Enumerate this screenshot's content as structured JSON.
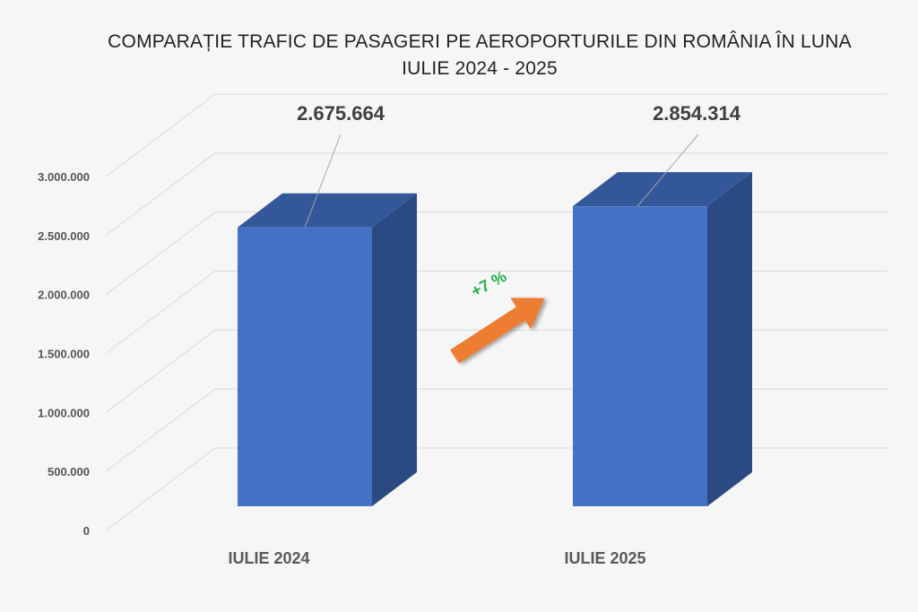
{
  "chart_data": {
    "type": "bar",
    "title_line1": "COMPARAȚIE TRAFIC DE PASAGERI PE AEROPORTURILE DIN ROMÂNIA ÎN LUNA",
    "title_line2": "IULIE 2024 - 2025",
    "categories": [
      "IULIE 2024",
      "IULIE 2025"
    ],
    "values": [
      2675664,
      2854314
    ],
    "data_labels": [
      "2.675.664",
      "2.854.314"
    ],
    "ylim": [
      0,
      3000000
    ],
    "y_ticks": [
      0,
      500000,
      1000000,
      1500000,
      2000000,
      2500000,
      3000000
    ],
    "y_tick_labels": [
      "0",
      "500.000",
      "1.000.000",
      "1.500.000",
      "2.000.000",
      "2.500.000",
      "3.000.000"
    ],
    "grid": true,
    "style": "3d-column",
    "change_annotation": "+7 %",
    "colors": {
      "bar_front": "#4472c4",
      "bar_side": "#2b4a82",
      "bar_top": "#34579a",
      "arrow": "#ed7d31",
      "change_text": "#22b14c",
      "grid": "#d9d9d9"
    }
  }
}
